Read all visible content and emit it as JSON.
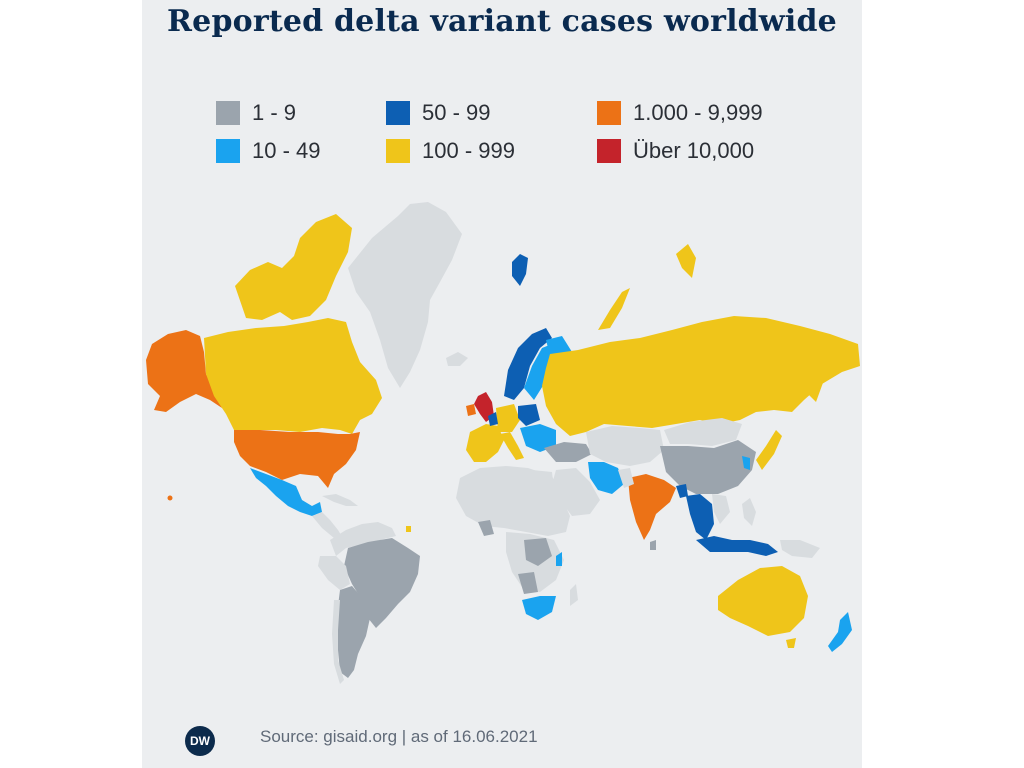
{
  "title": "Reported delta variant cases worldwide",
  "legend": [
    {
      "label": "1 - 9",
      "color": "#9ba4ad"
    },
    {
      "label": "10 - 49",
      "color": "#1aa3ef"
    },
    {
      "label": "50 - 99",
      "color": "#0d5fb3"
    },
    {
      "label": "100 - 999",
      "color": "#efc51a"
    },
    {
      "label": "1.000 - 9,999",
      "color": "#ec7216"
    },
    {
      "label": "Über 10,000",
      "color": "#c4232b"
    }
  ],
  "colors": {
    "no_data": "#d8dcdf",
    "background": "#eceef0",
    "title": "#0a2a4f"
  },
  "source": "Source: gisaid.org | as of 16.06.2021",
  "logo_text": "DW",
  "icons": {
    "logo": "dw-logo-icon"
  }
}
